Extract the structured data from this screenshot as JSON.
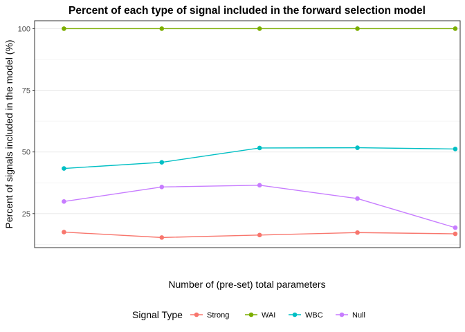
{
  "chart_data": {
    "type": "line",
    "title": "Percent of each type of signal included in the forward selection model",
    "xlabel": "Number of (pre-set) total parameters",
    "ylabel": "Percent of signals included in the model (%)",
    "x": [
      1,
      2,
      3,
      4,
      5
    ],
    "xlim": [
      0.7,
      5.05
    ],
    "ylim": [
      11.2,
      103.2
    ],
    "yticks": [
      25,
      50,
      75,
      100
    ],
    "ytick_labels": [
      "25",
      "50",
      "75",
      "100"
    ],
    "grid": true,
    "legend": {
      "title": "Signal Type",
      "position": "bottom"
    },
    "series": [
      {
        "name": "Strong",
        "color": "#F8766D",
        "values": [
          17.5,
          15.3,
          16.3,
          17.3,
          16.8
        ]
      },
      {
        "name": "WAI",
        "color": "#7CAE00",
        "values": [
          100,
          100,
          100,
          100,
          100
        ]
      },
      {
        "name": "WBC",
        "color": "#00BFC4",
        "values": [
          43.3,
          45.8,
          51.6,
          51.7,
          51.2
        ]
      },
      {
        "name": "Null",
        "color": "#C77CFF",
        "values": [
          29.9,
          35.8,
          36.5,
          31.1,
          19.3
        ]
      }
    ]
  }
}
